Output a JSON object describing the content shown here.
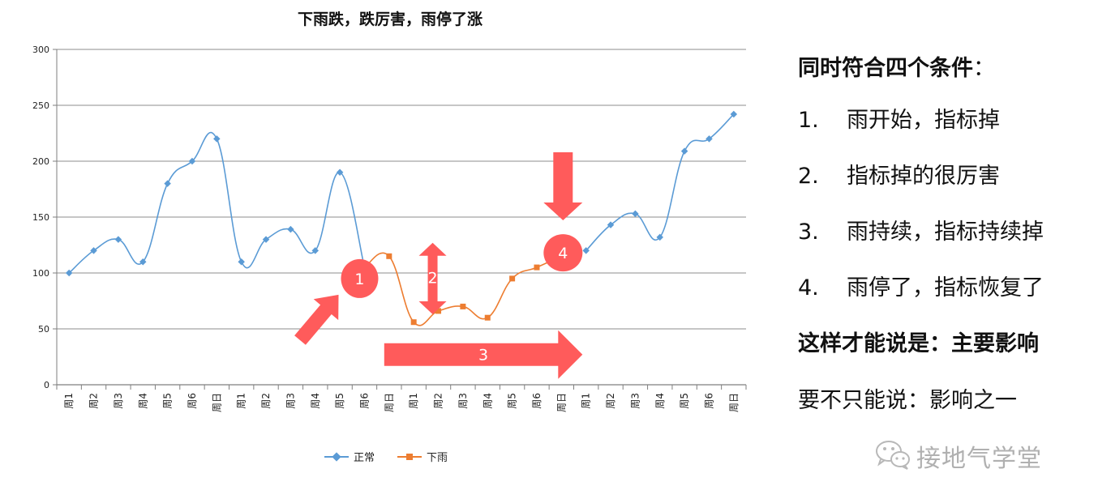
{
  "chart_data": {
    "type": "line",
    "title": "下雨跌，跌厉害，雨停了涨",
    "categories": [
      "周1",
      "周2",
      "周3",
      "周4",
      "周5",
      "周6",
      "周日",
      "周1",
      "周2",
      "周3",
      "周4",
      "周5",
      "周6",
      "周日",
      "周1",
      "周2",
      "周3",
      "周4",
      "周5",
      "周6",
      "周日",
      "周1",
      "周2",
      "周3",
      "周4",
      "周5",
      "周6",
      "周日"
    ],
    "ylim": [
      0,
      300
    ],
    "yticks": [
      0,
      50,
      100,
      150,
      200,
      250,
      300
    ],
    "grid": true,
    "legend_position": "bottom",
    "series": [
      {
        "name": "正常",
        "color": "#5b9bd5",
        "marker": "diamond",
        "values": [
          100,
          120,
          130,
          110,
          180,
          200,
          220,
          110,
          130,
          139,
          120,
          190,
          105,
          null,
          null,
          null,
          null,
          null,
          null,
          null,
          null,
          120,
          143,
          153,
          132,
          209,
          220,
          242
        ]
      },
      {
        "name": "下雨",
        "color": "#ed7d31",
        "marker": "square",
        "values": [
          null,
          null,
          null,
          null,
          null,
          null,
          null,
          null,
          null,
          null,
          null,
          null,
          105,
          115,
          56,
          66,
          70,
          60,
          95,
          105,
          115,
          null,
          null,
          null,
          null,
          null,
          null,
          null
        ]
      }
    ],
    "annotations": [
      {
        "label": "1",
        "kind": "circle-with-diagonal-arrow"
      },
      {
        "label": "2",
        "kind": "vertical-double-arrow"
      },
      {
        "label": "3",
        "kind": "horizontal-arrow"
      },
      {
        "label": "4",
        "kind": "circle-with-down-arrow"
      }
    ],
    "annotation_color": "#ff5b5b"
  },
  "panel": {
    "heading": "同时符合四个条件",
    "heading_colon": "：",
    "items": [
      {
        "num": "1.",
        "text": "雨开始，指标掉"
      },
      {
        "num": "2.",
        "text": "指标掉的很厉害"
      },
      {
        "num": "3.",
        "text": "雨持续，指标持续掉"
      },
      {
        "num": "4.",
        "text": "雨停了，指标恢复了"
      }
    ],
    "conclusion": "这样才能说是：主要影响",
    "note": "要不只能说：影响之一"
  },
  "watermark": {
    "text": "接地气学堂",
    "icon": "wechat-icon"
  }
}
